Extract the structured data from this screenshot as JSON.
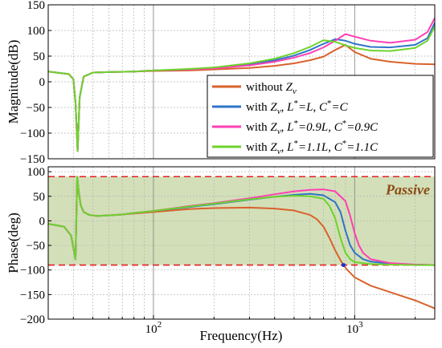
{
  "chart_data": {
    "type": "line",
    "x_scale": "log",
    "xlim": [
      30,
      2500
    ],
    "xlabel": "Frequency(Hz)",
    "x_ticks": [
      {
        "value": 100,
        "base": "10",
        "exp": "2"
      },
      {
        "value": 1000,
        "base": "10",
        "exp": "3"
      }
    ],
    "grid": true,
    "series_colors": [
      "#d9622b",
      "#2f74c8",
      "#ff3fb5",
      "#6ed32c"
    ],
    "legend": {
      "location": "inside-lower-right",
      "entries": [
        {
          "text": "without ",
          "z": "Z",
          "zsub": "v",
          "color": "#d9622b"
        },
        {
          "text": "with ",
          "z": "Z",
          "zsub": "v",
          "mid": ", ",
          "l": "L",
          "lsup": "*",
          "lval": "=L",
          "c": "C",
          "csup": "*",
          "cval": "=C",
          "color": "#2f74c8"
        },
        {
          "text": "with ",
          "z": "Z",
          "zsub": "v",
          "mid": ", ",
          "l": "L",
          "lsup": "*",
          "lval": "=0.9L",
          "c": "C",
          "csup": "*",
          "cval": "=0.9C",
          "color": "#ff3fb5"
        },
        {
          "text": "with ",
          "z": "Z",
          "zsub": "v",
          "mid": ", ",
          "l": "L",
          "lsup": "*",
          "lval": "=1.1L",
          "c": "C",
          "csup": "*",
          "cval": "=1.1C",
          "color": "#6ed32c"
        }
      ]
    },
    "panels": [
      {
        "ylabel": "Magnitude(dB)",
        "ylim": [
          -150,
          150
        ],
        "yticks": [
          -150,
          -100,
          -50,
          0,
          50,
          100,
          150
        ],
        "series": [
          {
            "color": "#d9622b",
            "x": [
              30,
              38,
              40,
              41,
              42,
              43,
              45,
              50,
              60,
              80,
              100,
              150,
              200,
              300,
              400,
              500,
              600,
              700,
              800,
              900,
              1000,
              1200,
              1500,
              2000,
              2500
            ],
            "y": [
              20,
              15,
              5,
              -40,
              -135,
              -30,
              10,
              18,
              19,
              20,
              21,
              22,
              24,
              27,
              31,
              36,
              42,
              49,
              62,
              72,
              58,
              45,
              39,
              35,
              34
            ]
          },
          {
            "color": "#2f74c8",
            "x": [
              30,
              38,
              40,
              41,
              42,
              43,
              45,
              50,
              60,
              80,
              100,
              150,
              200,
              300,
              400,
              500,
              600,
              700,
              800,
              900,
              1000,
              1200,
              1500,
              2000,
              2300,
              2500
            ],
            "y": [
              20,
              15,
              5,
              -40,
              -135,
              -30,
              10,
              18,
              19,
              20,
              22,
              24,
              27,
              34,
              42,
              51,
              62,
              74,
              83,
              80,
              74,
              68,
              67,
              72,
              85,
              115
            ]
          },
          {
            "color": "#ff3fb5",
            "x": [
              30,
              38,
              40,
              41,
              42,
              43,
              45,
              50,
              60,
              80,
              100,
              150,
              200,
              300,
              400,
              500,
              600,
              700,
              800,
              900,
              1000,
              1200,
              1500,
              2000,
              2300,
              2500
            ],
            "y": [
              20,
              15,
              5,
              -40,
              -135,
              -30,
              10,
              18,
              19,
              20,
              22,
              24,
              26,
              32,
              39,
              47,
              56,
              67,
              80,
              93,
              88,
              80,
              76,
              82,
              97,
              124
            ]
          },
          {
            "color": "#6ed32c",
            "x": [
              30,
              38,
              40,
              41,
              42,
              43,
              45,
              50,
              60,
              80,
              100,
              150,
              200,
              300,
              400,
              500,
              600,
              700,
              800,
              900,
              1000,
              1200,
              1500,
              2000,
              2300,
              2500
            ],
            "y": [
              20,
              15,
              5,
              -40,
              -135,
              -30,
              10,
              18,
              19,
              20,
              22,
              25,
              28,
              36,
              45,
              56,
              68,
              81,
              78,
              71,
              66,
              61,
              60,
              66,
              80,
              108
            ]
          }
        ]
      },
      {
        "ylabel": "Phase(deg)",
        "ylim": [
          -200,
          110
        ],
        "yticks": [
          -200,
          -150,
          -100,
          -50,
          0,
          50,
          100
        ],
        "passive_band": [
          -90,
          90
        ],
        "band_label": "Passive",
        "marker": {
          "x": 880,
          "y": -90
        },
        "series": [
          {
            "color": "#d9622b",
            "x": [
              30,
              36,
              39,
              40,
              41,
              41.8,
              42.5,
              43.5,
              45,
              48,
              52,
              60,
              70,
              80,
              100,
              150,
              200,
              300,
              400,
              500,
              600,
              650,
              700,
              750,
              800,
              850,
              880,
              920,
              1000,
              1200,
              1500,
              2000,
              2500
            ],
            "y": [
              -6,
              -12,
              -30,
              -55,
              -78,
              90,
              60,
              32,
              18,
              12,
              10,
              11,
              13,
              15,
              18,
              24,
              26,
              27,
              25,
              21,
              12,
              3,
              -12,
              -35,
              -60,
              -80,
              -90,
              -100,
              -115,
              -132,
              -145,
              -162,
              -178
            ]
          },
          {
            "color": "#2f74c8",
            "x": [
              30,
              36,
              39,
              40,
              41,
              41.8,
              42.5,
              43.5,
              45,
              48,
              52,
              60,
              70,
              80,
              100,
              150,
              200,
              300,
              400,
              500,
              600,
              700,
              800,
              850,
              900,
              950,
              1000,
              1100,
              1200,
              1500,
              2000,
              2500
            ],
            "y": [
              -6,
              -12,
              -30,
              -55,
              -78,
              90,
              60,
              32,
              18,
              12,
              10,
              11,
              13,
              16,
              20,
              28,
              34,
              43,
              49,
              53,
              55,
              52,
              38,
              18,
              -20,
              -50,
              -65,
              -78,
              -83,
              -87,
              -89,
              -90
            ]
          },
          {
            "color": "#ff3fb5",
            "x": [
              30,
              36,
              39,
              40,
              41,
              41.8,
              42.5,
              43.5,
              45,
              48,
              52,
              60,
              70,
              80,
              100,
              150,
              200,
              300,
              400,
              500,
              600,
              700,
              800,
              900,
              950,
              1000,
              1050,
              1100,
              1200,
              1500,
              2000,
              2500
            ],
            "y": [
              -6,
              -12,
              -30,
              -55,
              -78,
              90,
              60,
              32,
              18,
              12,
              10,
              11,
              13,
              16,
              20,
              30,
              36,
              46,
              54,
              60,
              63,
              64,
              60,
              40,
              10,
              -25,
              -50,
              -65,
              -78,
              -86,
              -89,
              -90
            ]
          },
          {
            "color": "#6ed32c",
            "x": [
              30,
              36,
              39,
              40,
              41,
              41.8,
              42.5,
              43.5,
              45,
              48,
              52,
              60,
              70,
              80,
              100,
              150,
              200,
              300,
              400,
              500,
              600,
              700,
              750,
              800,
              850,
              900,
              950,
              1000,
              1200,
              1500,
              2000,
              2500
            ],
            "y": [
              -6,
              -12,
              -30,
              -55,
              -78,
              90,
              60,
              32,
              18,
              12,
              10,
              11,
              13,
              16,
              20,
              29,
              35,
              44,
              49,
              51,
              50,
              45,
              30,
              5,
              -35,
              -65,
              -78,
              -84,
              -88,
              -89,
              -90,
              -90
            ]
          }
        ]
      }
    ]
  }
}
